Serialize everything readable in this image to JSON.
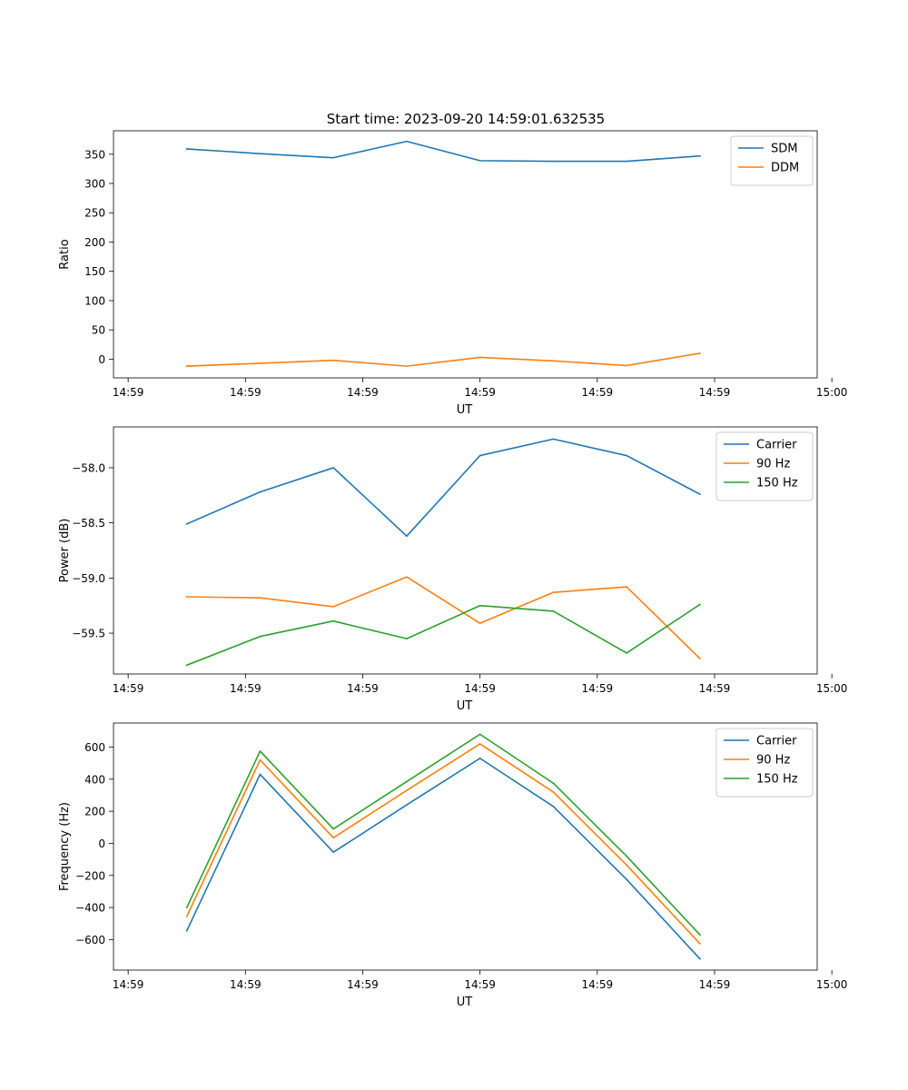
{
  "figure": {
    "title": "Start time: 2023-09-20 14:59:01.632535"
  },
  "colors": {
    "blue": "#1f77b4",
    "orange": "#ff7f0e",
    "green": "#2ca02c"
  },
  "chart_data": [
    {
      "type": "line",
      "title": "Start time: 2023-09-20 14:59:01.632535",
      "xlabel": "UT",
      "ylabel": "Ratio",
      "x": [
        0.5,
        1.0,
        1.5,
        2.0,
        2.5,
        3.0,
        3.5,
        4.0
      ],
      "xlim": [
        0,
        4.8
      ],
      "xticks": [
        0.1,
        0.9,
        1.7,
        2.5,
        3.3,
        4.1,
        4.9
      ],
      "xtick_labels": [
        "14:59",
        "14:59",
        "14:59",
        "14:59",
        "14:59",
        "14:59",
        "15:00"
      ],
      "ylim": [
        -32,
        390
      ],
      "yticks": [
        0,
        50,
        100,
        150,
        200,
        250,
        300,
        350
      ],
      "ytick_labels": [
        "0",
        "50",
        "100",
        "150",
        "200",
        "250",
        "300",
        "350"
      ],
      "legend_loc": "top-right",
      "series": [
        {
          "name": "SDM",
          "color": "#1f77b4",
          "values": [
            359,
            351,
            344,
            372,
            339,
            338,
            338,
            347
          ]
        },
        {
          "name": "DDM",
          "color": "#ff7f0e",
          "values": [
            -12,
            -7,
            -2,
            -12,
            3,
            -3,
            -11,
            10
          ]
        }
      ]
    },
    {
      "type": "line",
      "xlabel": "UT",
      "ylabel": "Power (dB)",
      "x": [
        0.5,
        1.0,
        1.5,
        2.0,
        2.5,
        3.0,
        3.5,
        4.0
      ],
      "xlim": [
        0,
        4.8
      ],
      "xticks": [
        0.1,
        0.9,
        1.7,
        2.5,
        3.3,
        4.1,
        4.9
      ],
      "xtick_labels": [
        "14:59",
        "14:59",
        "14:59",
        "14:59",
        "14:59",
        "14:59",
        "15:00"
      ],
      "ylim": [
        -59.87,
        -57.63
      ],
      "yticks": [
        -59.5,
        -59.0,
        -58.5,
        -58.0
      ],
      "ytick_labels": [
        "−59.5",
        "−59.0",
        "−58.5",
        "−58.0"
      ],
      "legend_loc": "top-right",
      "series": [
        {
          "name": "Carrier",
          "color": "#1f77b4",
          "values": [
            -58.51,
            -58.22,
            -58.0,
            -58.62,
            -57.89,
            -57.74,
            -57.89,
            -58.24
          ]
        },
        {
          "name": "90 Hz",
          "color": "#ff7f0e",
          "values": [
            -59.17,
            -59.18,
            -59.26,
            -58.99,
            -59.41,
            -59.13,
            -59.08,
            -59.73
          ]
        },
        {
          "name": "150 Hz",
          "color": "#2ca02c",
          "values": [
            -59.79,
            -59.53,
            -59.39,
            -59.55,
            -59.25,
            -59.3,
            -59.68,
            -59.24
          ]
        }
      ]
    },
    {
      "type": "line",
      "xlabel": "UT",
      "ylabel": "Frequency (Hz)",
      "x": [
        0.5,
        1.0,
        1.5,
        2.0,
        2.5,
        3.0,
        3.5,
        4.0
      ],
      "xlim": [
        0,
        4.8
      ],
      "xticks": [
        0.1,
        0.9,
        1.7,
        2.5,
        3.3,
        4.1,
        4.9
      ],
      "xtick_labels": [
        "14:59",
        "14:59",
        "14:59",
        "14:59",
        "14:59",
        "14:59",
        "15:00"
      ],
      "ylim": [
        -790,
        750
      ],
      "yticks": [
        -600,
        -400,
        -200,
        0,
        200,
        400,
        600
      ],
      "ytick_labels": [
        "−600",
        "−400",
        "−200",
        "0",
        "200",
        "400",
        "600"
      ],
      "legend_loc": "top-right",
      "series": [
        {
          "name": "Carrier",
          "color": "#1f77b4",
          "values": [
            -545,
            430,
            -55,
            240,
            530,
            230,
            -225,
            -720
          ]
        },
        {
          "name": "90 Hz",
          "color": "#ff7f0e",
          "values": [
            -455,
            520,
            35,
            330,
            620,
            320,
            -135,
            -625
          ]
        },
        {
          "name": "150 Hz",
          "color": "#2ca02c",
          "values": [
            -400,
            575,
            90,
            385,
            680,
            375,
            -80,
            -570
          ]
        }
      ]
    }
  ]
}
